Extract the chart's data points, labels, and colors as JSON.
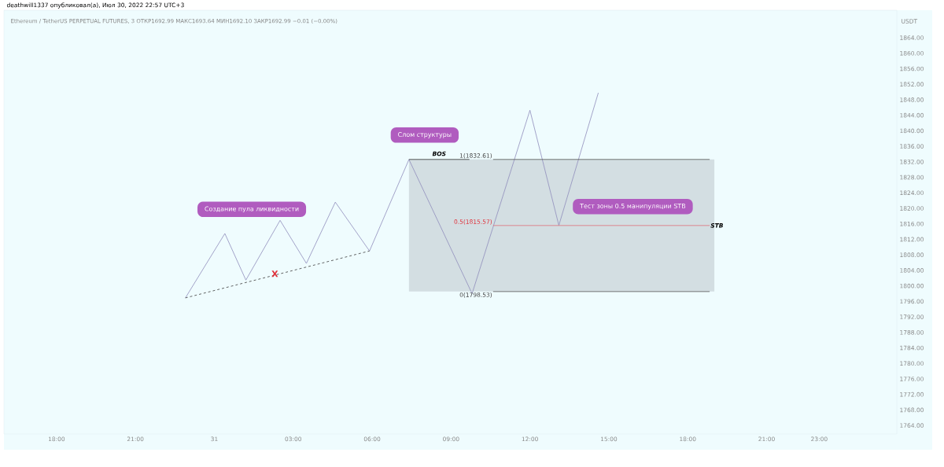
{
  "chart_data": {
    "type": "line",
    "title": "deathwill1337 опубликовал(а), Июл 30, 2022 22:57 UTC+3",
    "subtitle": "Ethereum / TetherUS PERPETUAL FUTURES, 3  ОТКР1692.99  МАКС1693.64  МИН1692.10  ЗАКР1692.99  −0.01 (−0.00%)",
    "ylabel": "USDT",
    "xlim": [
      "2022-07-30T16:00",
      "2022-08-01T01:57"
    ],
    "ylim": [
      1761.8,
      1871.1
    ],
    "xticks": [
      {
        "value": "2022-07-30T18:00",
        "label": "18:00"
      },
      {
        "value": "2022-07-30T21:00",
        "label": "21:00"
      },
      {
        "value": "2022-07-31T00:00",
        "label": "31"
      },
      {
        "value": "2022-07-31T03:00",
        "label": "03:00"
      },
      {
        "value": "2022-07-31T06:00",
        "label": "06:00"
      },
      {
        "value": "2022-07-31T09:00",
        "label": "09:00"
      },
      {
        "value": "2022-07-31T12:00",
        "label": "12:00"
      },
      {
        "value": "2022-07-31T15:00",
        "label": "15:00"
      },
      {
        "value": "2022-07-31T18:00",
        "label": "18:00"
      },
      {
        "value": "2022-07-31T21:00",
        "label": "21:00"
      },
      {
        "value": "2022-07-31T23:00",
        "label": "23:00"
      }
    ],
    "yticks": [
      {
        "value": 1764,
        "label": "1764.00"
      },
      {
        "value": 1768,
        "label": "1768.00"
      },
      {
        "value": 1772,
        "label": "1772.00"
      },
      {
        "value": 1776,
        "label": "1776.00"
      },
      {
        "value": 1780,
        "label": "1780.00"
      },
      {
        "value": 1784,
        "label": "1784.00"
      },
      {
        "value": 1788,
        "label": "1788.00"
      },
      {
        "value": 1792,
        "label": "1792.00"
      },
      {
        "value": 1796,
        "label": "1796.00"
      },
      {
        "value": 1800,
        "label": "1800.00"
      },
      {
        "value": 1804,
        "label": "1804.00"
      },
      {
        "value": 1808,
        "label": "1808.00"
      },
      {
        "value": 1812,
        "label": "1812.00"
      },
      {
        "value": 1816,
        "label": "1816.00"
      },
      {
        "value": 1820,
        "label": "1820.00"
      },
      {
        "value": 1824,
        "label": "1824.00"
      },
      {
        "value": 1828,
        "label": "1828.00"
      },
      {
        "value": 1832,
        "label": "1832.00"
      },
      {
        "value": 1836,
        "label": "1836.00"
      },
      {
        "value": 1840,
        "label": "1840.00"
      },
      {
        "value": 1844,
        "label": "1844.00"
      },
      {
        "value": 1848,
        "label": "1848.00"
      },
      {
        "value": 1852,
        "label": "1852.00"
      },
      {
        "value": 1856,
        "label": "1856.00"
      },
      {
        "value": 1860,
        "label": "1860.00"
      },
      {
        "value": 1864,
        "label": "1864.00"
      }
    ],
    "series": [
      {
        "x": [
          "2022-07-30T22:54",
          "2022-07-31T00:24",
          "2022-07-31T01:12",
          "2022-07-31T02:30",
          "2022-07-31T03:30",
          "2022-07-31T04:36",
          "2022-07-31T05:54",
          "2022-07-31T07:24",
          "2022-07-31T09:48",
          "2022-07-31T12:00",
          "2022-07-31T13:06",
          "2022-07-31T14:36"
        ],
        "values": [
          1796.9,
          1813.5,
          1801.5,
          1816.9,
          1805.8,
          1821.6,
          1809.0,
          1832.6,
          1798.0,
          1845.3,
          1815.6,
          1849.8
        ],
        "color": "#8f8dbb"
      },
      {
        "x": [
          "2022-07-30T22:54",
          "2022-07-31T05:54"
        ],
        "values": [
          1796.9,
          1809.0
        ],
        "color": "#3c3c3c",
        "line_style": "dashed"
      },
      {
        "x": [
          "2022-07-31T07:24",
          "2022-07-31T09:42"
        ],
        "values": [
          1832.61,
          1832.61
        ],
        "color": "#333333"
      },
      {
        "x": [
          "2022-07-31T10:36",
          "2022-07-31T18:50"
        ],
        "values": [
          1832.61,
          1832.61
        ],
        "color": "#555555"
      },
      {
        "x": [
          "2022-07-31T10:36",
          "2022-07-31T18:50"
        ],
        "values": [
          1815.57,
          1815.57
        ],
        "color": "#e0707a"
      },
      {
        "x": [
          "2022-07-31T10:36",
          "2022-07-31T18:50"
        ],
        "values": [
          1798.53,
          1798.53
        ],
        "color": "#555555"
      }
    ],
    "annotations": [
      "Создание пула ликвидности",
      "Слом структуры",
      "Тест зоны 0.5 манипуляции STB",
      {
        "text": "X",
        "x": "2022-07-31T02:18",
        "y": 1803.1
      },
      "BOS",
      {
        "text": "1(1832.61)",
        "x": "2022-07-31T10:36",
        "y": 1832.61
      },
      {
        "text": "0.5(1815.57)",
        "x": "2022-07-31T10:36",
        "y": 1815.57
      },
      {
        "text": "0(1798.53)",
        "x": "2022-07-31T10:36",
        "y": 1798.53
      },
      "STB"
    ]
  }
}
